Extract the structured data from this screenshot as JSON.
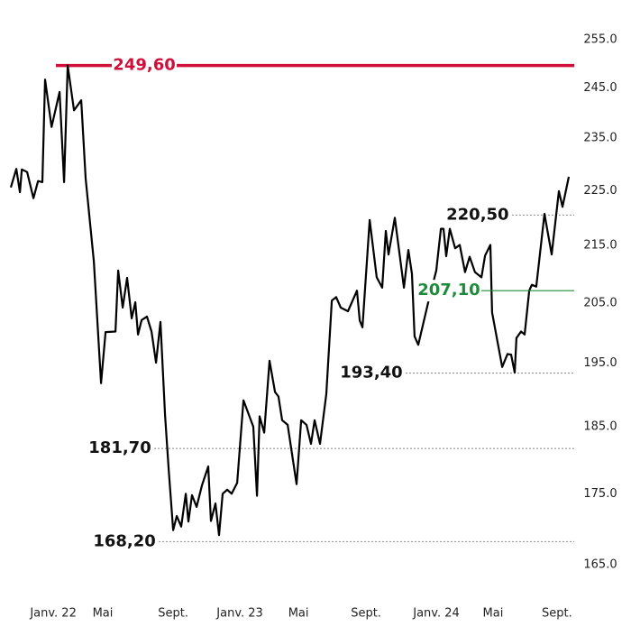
{
  "chart_data": {
    "type": "line",
    "log_y": true,
    "x": [
      -2.7,
      -2.35,
      -2.12,
      -2.0,
      -1.66,
      -1.26,
      -0.97,
      -0.69,
      -0.52,
      -0.11,
      0.4,
      0.69,
      0.92,
      1.32,
      1.78,
      2.06,
      2.58,
      3.04,
      3.33,
      3.96,
      4.13,
      4.42,
      4.7,
      4.99,
      5.22,
      5.39,
      5.62,
      5.96,
      6.25,
      6.54,
      6.82,
      7.11,
      7.34,
      7.63,
      7.86,
      8.14,
      8.43,
      8.6,
      8.83,
      9.12,
      9.46,
      9.86,
      10.03,
      10.32,
      10.55,
      10.78,
      11.07,
      11.35,
      11.7,
      12.1,
      12.73,
      12.96,
      13.13,
      13.42,
      13.76,
      14.11,
      14.33,
      14.56,
      14.91,
      15.48,
      15.77,
      16.11,
      16.4,
      16.63,
      16.97,
      17.37,
      17.72,
      18.0,
      18.29,
      18.75,
      19.32,
      19.5,
      19.67,
      20.13,
      20.58,
      20.93,
      21.16,
      21.33,
      21.73,
      22.31,
      22.59,
      22.82,
      22.99,
      23.22,
      23.85,
      24.37,
      24.66,
      24.83,
      25.0,
      25.23,
      25.57,
      25.86,
      26.2,
      26.49,
      26.83,
      27.24,
      27.47,
      27.81,
      27.92,
      28.56,
      28.9,
      29.13,
      29.36,
      29.47,
      29.76,
      29.99,
      30.28,
      30.45,
      30.73,
      31.25,
      31.71,
      32.17,
      32.4,
      32.8
    ],
    "series": [
      {
        "color": "#000000",
        "values": [
          225.6,
          229.1,
          224.7,
          229.0,
          228.5,
          223.6,
          226.8,
          226.6,
          246.7,
          237.2,
          244.2,
          226.6,
          249.6,
          240.5,
          242.5,
          227.3,
          212.2,
          191.8,
          200.1,
          200.2,
          210.6,
          204.2,
          209.3,
          202.4,
          205.1,
          199.7,
          202.1,
          202.7,
          200.2,
          195.1,
          201.8,
          186.8,
          178.6,
          169.8,
          171.8,
          170.3,
          175.0,
          171.0,
          174.8,
          173.1,
          176.2,
          179.0,
          171.1,
          173.6,
          169.1,
          175.0,
          175.6,
          175.0,
          176.6,
          189.1,
          185.0,
          174.7,
          186.6,
          184.1,
          195.4,
          190.4,
          189.7,
          186.0,
          185.3,
          176.4,
          186.0,
          185.3,
          182.4,
          186.0,
          182.4,
          190.1,
          205.4,
          206.0,
          204.2,
          203.6,
          207.1,
          202.0,
          200.9,
          219.6,
          209.4,
          207.6,
          217.6,
          213.4,
          220.0,
          207.6,
          214.2,
          210.0,
          199.4,
          198.0,
          205.0,
          210.6,
          218.0,
          218.0,
          213.1,
          218.0,
          214.5,
          215.1,
          210.3,
          213.0,
          210.3,
          209.4,
          213.2,
          215.1,
          203.4,
          194.4,
          196.5,
          196.4,
          193.5,
          199.1,
          200.2,
          199.7,
          207.1,
          208.1,
          207.8,
          220.7,
          213.4,
          224.9,
          222.0,
          227.6
        ]
      }
    ],
    "xlim": [
      -2.7,
      32.8
    ],
    "xticks": [
      {
        "value": 0,
        "label": "Janv. 22"
      },
      {
        "value": 3.15,
        "label": "Mai"
      },
      {
        "value": 7.63,
        "label": "Sept."
      },
      {
        "value": 11.87,
        "label": "Janv. 23"
      },
      {
        "value": 15.6,
        "label": "Mai"
      },
      {
        "value": 19.9,
        "label": "Sept."
      },
      {
        "value": 24.37,
        "label": "Janv. 24"
      },
      {
        "value": 27.98,
        "label": "Mai"
      },
      {
        "value": 32.05,
        "label": "Sept."
      }
    ],
    "ylim": [
      165,
      255
    ],
    "yticks": [
      {
        "value": 255,
        "label": "255.0"
      },
      {
        "value": 245,
        "label": "245.0"
      },
      {
        "value": 235,
        "label": "235.0"
      },
      {
        "value": 225,
        "label": "225.0"
      },
      {
        "value": 215,
        "label": "215.0"
      },
      {
        "value": 205,
        "label": "205.0"
      },
      {
        "value": 195,
        "label": "195.0"
      },
      {
        "value": 185,
        "label": "185.0"
      },
      {
        "value": 175,
        "label": "175.0"
      },
      {
        "value": 165,
        "label": "165.0"
      }
    ],
    "annotations": [
      {
        "value": 249.6,
        "label": "249,60",
        "color": "#d0103a",
        "line": "solid",
        "span": "full",
        "x": 5.79
      },
      {
        "value": 220.5,
        "label": "220,50",
        "color": "#111111",
        "line": "dotted",
        "x": 27.0
      },
      {
        "value": 207.1,
        "label": "207,10",
        "color": "#1f8a3c",
        "line": "solid",
        "x": 25.17
      },
      {
        "value": 193.4,
        "label": "193,40",
        "color": "#111111",
        "line": "dotted",
        "x": 20.24
      },
      {
        "value": 181.7,
        "label": "181,70",
        "color": "#111111",
        "line": "dotted",
        "x": 4.24
      },
      {
        "value": 168.2,
        "label": "168,20",
        "color": "#111111",
        "line": "dotted",
        "x": 4.53
      }
    ]
  }
}
